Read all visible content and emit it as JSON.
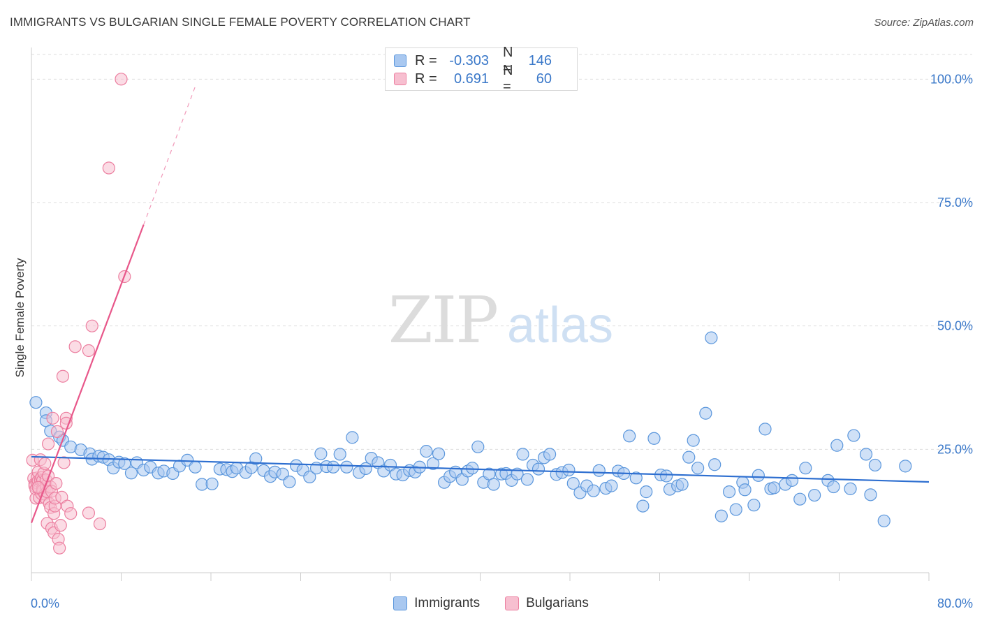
{
  "title": "IMMIGRANTS VS BULGARIAN SINGLE FEMALE POVERTY CORRELATION CHART",
  "source": "Source: ZipAtlas.com",
  "watermark": {
    "zip": "ZIP",
    "atlas": "atlas"
  },
  "legend_stats": [
    {
      "r_label": "R =",
      "r_value": "-0.303",
      "n_label": "N =",
      "n_value": "146"
    },
    {
      "r_label": "R =",
      "r_value": "0.691",
      "n_label": "N =",
      "n_value": "60"
    }
  ],
  "chart_data": {
    "type": "scatter",
    "ylabel": "Single Female Poverty",
    "xlim": [
      0,
      80
    ],
    "ylim": [
      0,
      105
    ],
    "x_tick_labels": [
      {
        "value": 0,
        "label": "0.0%"
      },
      {
        "value": 80,
        "label": "80.0%"
      }
    ],
    "y_tick_labels": [
      {
        "value": 25,
        "label": "25.0%"
      },
      {
        "value": 50,
        "label": "50.0%"
      },
      {
        "value": 75,
        "label": "75.0%"
      },
      {
        "value": 100,
        "label": "100.0%"
      }
    ],
    "grid": "horizontal dashed",
    "colors": {
      "immigrants_fill": "#a9c8f0",
      "immigrants_stroke": "#5a96dc",
      "immigrants_line": "#2e6fd0",
      "bulgarians_fill": "#f7bfd0",
      "bulgarians_stroke": "#ec7fa0",
      "bulgarians_line": "#e8578a"
    },
    "series": [
      {
        "name": "Immigrants",
        "trend": {
          "x": [
            0,
            80
          ],
          "y": [
            23.5,
            18.4
          ],
          "style": "solid"
        },
        "points": [
          [
            0.4,
            34.5
          ],
          [
            1.3,
            32.4
          ],
          [
            1.3,
            30.8
          ],
          [
            1.7,
            28.7
          ],
          [
            2.5,
            27.5
          ],
          [
            2.8,
            26.8
          ],
          [
            3.5,
            25.5
          ],
          [
            4.4,
            24.9
          ],
          [
            5.2,
            24.1
          ],
          [
            5.4,
            23.0
          ],
          [
            6.0,
            23.6
          ],
          [
            6.4,
            23.4
          ],
          [
            6.9,
            22.9
          ],
          [
            7.3,
            21.2
          ],
          [
            7.8,
            22.4
          ],
          [
            8.3,
            22.1
          ],
          [
            8.9,
            20.2
          ],
          [
            9.4,
            22.3
          ],
          [
            10.0,
            20.8
          ],
          [
            10.6,
            21.4
          ],
          [
            11.3,
            20.2
          ],
          [
            11.8,
            20.6
          ],
          [
            12.6,
            20.1
          ],
          [
            13.2,
            21.6
          ],
          [
            13.9,
            22.8
          ],
          [
            14.6,
            21.4
          ],
          [
            15.2,
            17.9
          ],
          [
            16.1,
            18.0
          ],
          [
            16.8,
            21.0
          ],
          [
            17.4,
            20.9
          ],
          [
            17.9,
            20.5
          ],
          [
            18.3,
            21.2
          ],
          [
            19.1,
            20.3
          ],
          [
            19.6,
            21.3
          ],
          [
            20.0,
            23.1
          ],
          [
            20.7,
            20.7
          ],
          [
            21.3,
            19.5
          ],
          [
            21.7,
            20.4
          ],
          [
            22.4,
            20.0
          ],
          [
            23.0,
            18.4
          ],
          [
            23.6,
            21.7
          ],
          [
            24.2,
            20.8
          ],
          [
            24.8,
            19.4
          ],
          [
            25.4,
            21.2
          ],
          [
            25.8,
            24.1
          ],
          [
            26.3,
            21.5
          ],
          [
            26.9,
            21.4
          ],
          [
            27.5,
            24.0
          ],
          [
            28.1,
            21.4
          ],
          [
            28.6,
            27.4
          ],
          [
            29.2,
            20.3
          ],
          [
            29.8,
            21.1
          ],
          [
            30.3,
            23.2
          ],
          [
            30.9,
            22.3
          ],
          [
            31.4,
            20.6
          ],
          [
            32.0,
            21.8
          ],
          [
            32.5,
            20.0
          ],
          [
            33.1,
            19.8
          ],
          [
            33.7,
            20.7
          ],
          [
            34.2,
            20.4
          ],
          [
            34.6,
            21.4
          ],
          [
            35.2,
            24.6
          ],
          [
            35.8,
            22.1
          ],
          [
            36.3,
            24.1
          ],
          [
            36.8,
            18.3
          ],
          [
            37.3,
            19.5
          ],
          [
            37.8,
            20.4
          ],
          [
            38.4,
            18.9
          ],
          [
            38.9,
            20.6
          ],
          [
            39.3,
            21.2
          ],
          [
            39.8,
            25.5
          ],
          [
            40.3,
            18.3
          ],
          [
            40.8,
            20.0
          ],
          [
            41.2,
            17.9
          ],
          [
            41.9,
            20.0
          ],
          [
            42.3,
            20.1
          ],
          [
            42.8,
            18.7
          ],
          [
            43.3,
            20.0
          ],
          [
            43.8,
            24.0
          ],
          [
            44.2,
            18.9
          ],
          [
            44.7,
            21.8
          ],
          [
            45.2,
            21.0
          ],
          [
            45.7,
            23.3
          ],
          [
            46.2,
            24.0
          ],
          [
            46.8,
            19.9
          ],
          [
            47.3,
            20.3
          ],
          [
            47.9,
            20.8
          ],
          [
            48.3,
            18.1
          ],
          [
            48.9,
            16.2
          ],
          [
            49.5,
            17.6
          ],
          [
            50.1,
            16.6
          ],
          [
            50.6,
            20.7
          ],
          [
            51.2,
            17.1
          ],
          [
            51.7,
            17.6
          ],
          [
            52.3,
            20.6
          ],
          [
            52.8,
            20.1
          ],
          [
            53.3,
            27.7
          ],
          [
            53.9,
            19.2
          ],
          [
            54.5,
            13.5
          ],
          [
            54.8,
            16.4
          ],
          [
            55.5,
            27.2
          ],
          [
            56.1,
            19.8
          ],
          [
            56.6,
            19.6
          ],
          [
            56.9,
            16.9
          ],
          [
            57.6,
            17.6
          ],
          [
            58.0,
            17.9
          ],
          [
            58.6,
            23.4
          ],
          [
            59.0,
            26.8
          ],
          [
            59.4,
            21.2
          ],
          [
            60.1,
            32.3
          ],
          [
            60.6,
            47.6
          ],
          [
            60.9,
            21.9
          ],
          [
            61.5,
            11.5
          ],
          [
            62.2,
            16.4
          ],
          [
            62.8,
            12.8
          ],
          [
            63.4,
            18.3
          ],
          [
            63.6,
            16.8
          ],
          [
            64.4,
            13.7
          ],
          [
            64.8,
            19.7
          ],
          [
            65.4,
            29.1
          ],
          [
            65.9,
            17.0
          ],
          [
            66.2,
            17.2
          ],
          [
            67.2,
            17.9
          ],
          [
            67.8,
            18.7
          ],
          [
            68.5,
            14.9
          ],
          [
            69.0,
            21.2
          ],
          [
            69.8,
            15.7
          ],
          [
            71.0,
            18.7
          ],
          [
            71.5,
            17.4
          ],
          [
            71.8,
            25.8
          ],
          [
            73.0,
            17.0
          ],
          [
            73.3,
            27.8
          ],
          [
            74.4,
            24.0
          ],
          [
            74.8,
            15.8
          ],
          [
            75.2,
            21.8
          ],
          [
            76.0,
            10.5
          ],
          [
            77.9,
            21.6
          ]
        ]
      },
      {
        "name": "Bulgarians",
        "trend": {
          "x": [
            0,
            10
          ],
          "y": [
            10.1,
            70.5
          ],
          "style": "solid",
          "extension_to": [
            14.6,
            98.5
          ],
          "extension_style": "dashed"
        },
        "points": [
          [
            0.1,
            22.8
          ],
          [
            0.2,
            19.1
          ],
          [
            0.3,
            18.0
          ],
          [
            0.3,
            17.6
          ],
          [
            0.4,
            16.9
          ],
          [
            0.4,
            15.1
          ],
          [
            0.5,
            18.2
          ],
          [
            0.5,
            19.2
          ],
          [
            0.6,
            18.6
          ],
          [
            0.6,
            20.4
          ],
          [
            0.7,
            15.2
          ],
          [
            0.7,
            17.0
          ],
          [
            0.8,
            22.9
          ],
          [
            0.8,
            18.8
          ],
          [
            0.9,
            19.3
          ],
          [
            0.9,
            16.0
          ],
          [
            1.0,
            17.1
          ],
          [
            1.0,
            18.7
          ],
          [
            1.0,
            16.6
          ],
          [
            1.1,
            20.2
          ],
          [
            1.2,
            15.9
          ],
          [
            1.2,
            22.1
          ],
          [
            1.3,
            17.6
          ],
          [
            1.3,
            18.8
          ],
          [
            1.3,
            15.0
          ],
          [
            1.4,
            16.4
          ],
          [
            1.4,
            10.0
          ],
          [
            1.5,
            26.1
          ],
          [
            1.5,
            19.6
          ],
          [
            1.6,
            14.0
          ],
          [
            1.7,
            17.4
          ],
          [
            1.7,
            13.2
          ],
          [
            1.8,
            16.5
          ],
          [
            1.8,
            9.0
          ],
          [
            1.9,
            31.3
          ],
          [
            2.0,
            8.1
          ],
          [
            2.0,
            12.0
          ],
          [
            2.1,
            13.5
          ],
          [
            2.1,
            15.1
          ],
          [
            2.2,
            18.1
          ],
          [
            2.3,
            28.6
          ],
          [
            2.4,
            6.8
          ],
          [
            2.5,
            5.0
          ],
          [
            2.6,
            9.6
          ],
          [
            2.7,
            15.3
          ],
          [
            2.8,
            39.8
          ],
          [
            2.9,
            22.3
          ],
          [
            3.1,
            31.3
          ],
          [
            3.1,
            30.3
          ],
          [
            3.2,
            13.5
          ],
          [
            3.5,
            12.0
          ],
          [
            3.9,
            45.8
          ],
          [
            5.1,
            45.0
          ],
          [
            5.1,
            12.1
          ],
          [
            5.4,
            50.0
          ],
          [
            6.1,
            9.9
          ],
          [
            6.9,
            82.0
          ],
          [
            8.0,
            100.0
          ],
          [
            8.3,
            60.0
          ],
          [
            0.6,
            17.3
          ]
        ]
      }
    ]
  }
}
